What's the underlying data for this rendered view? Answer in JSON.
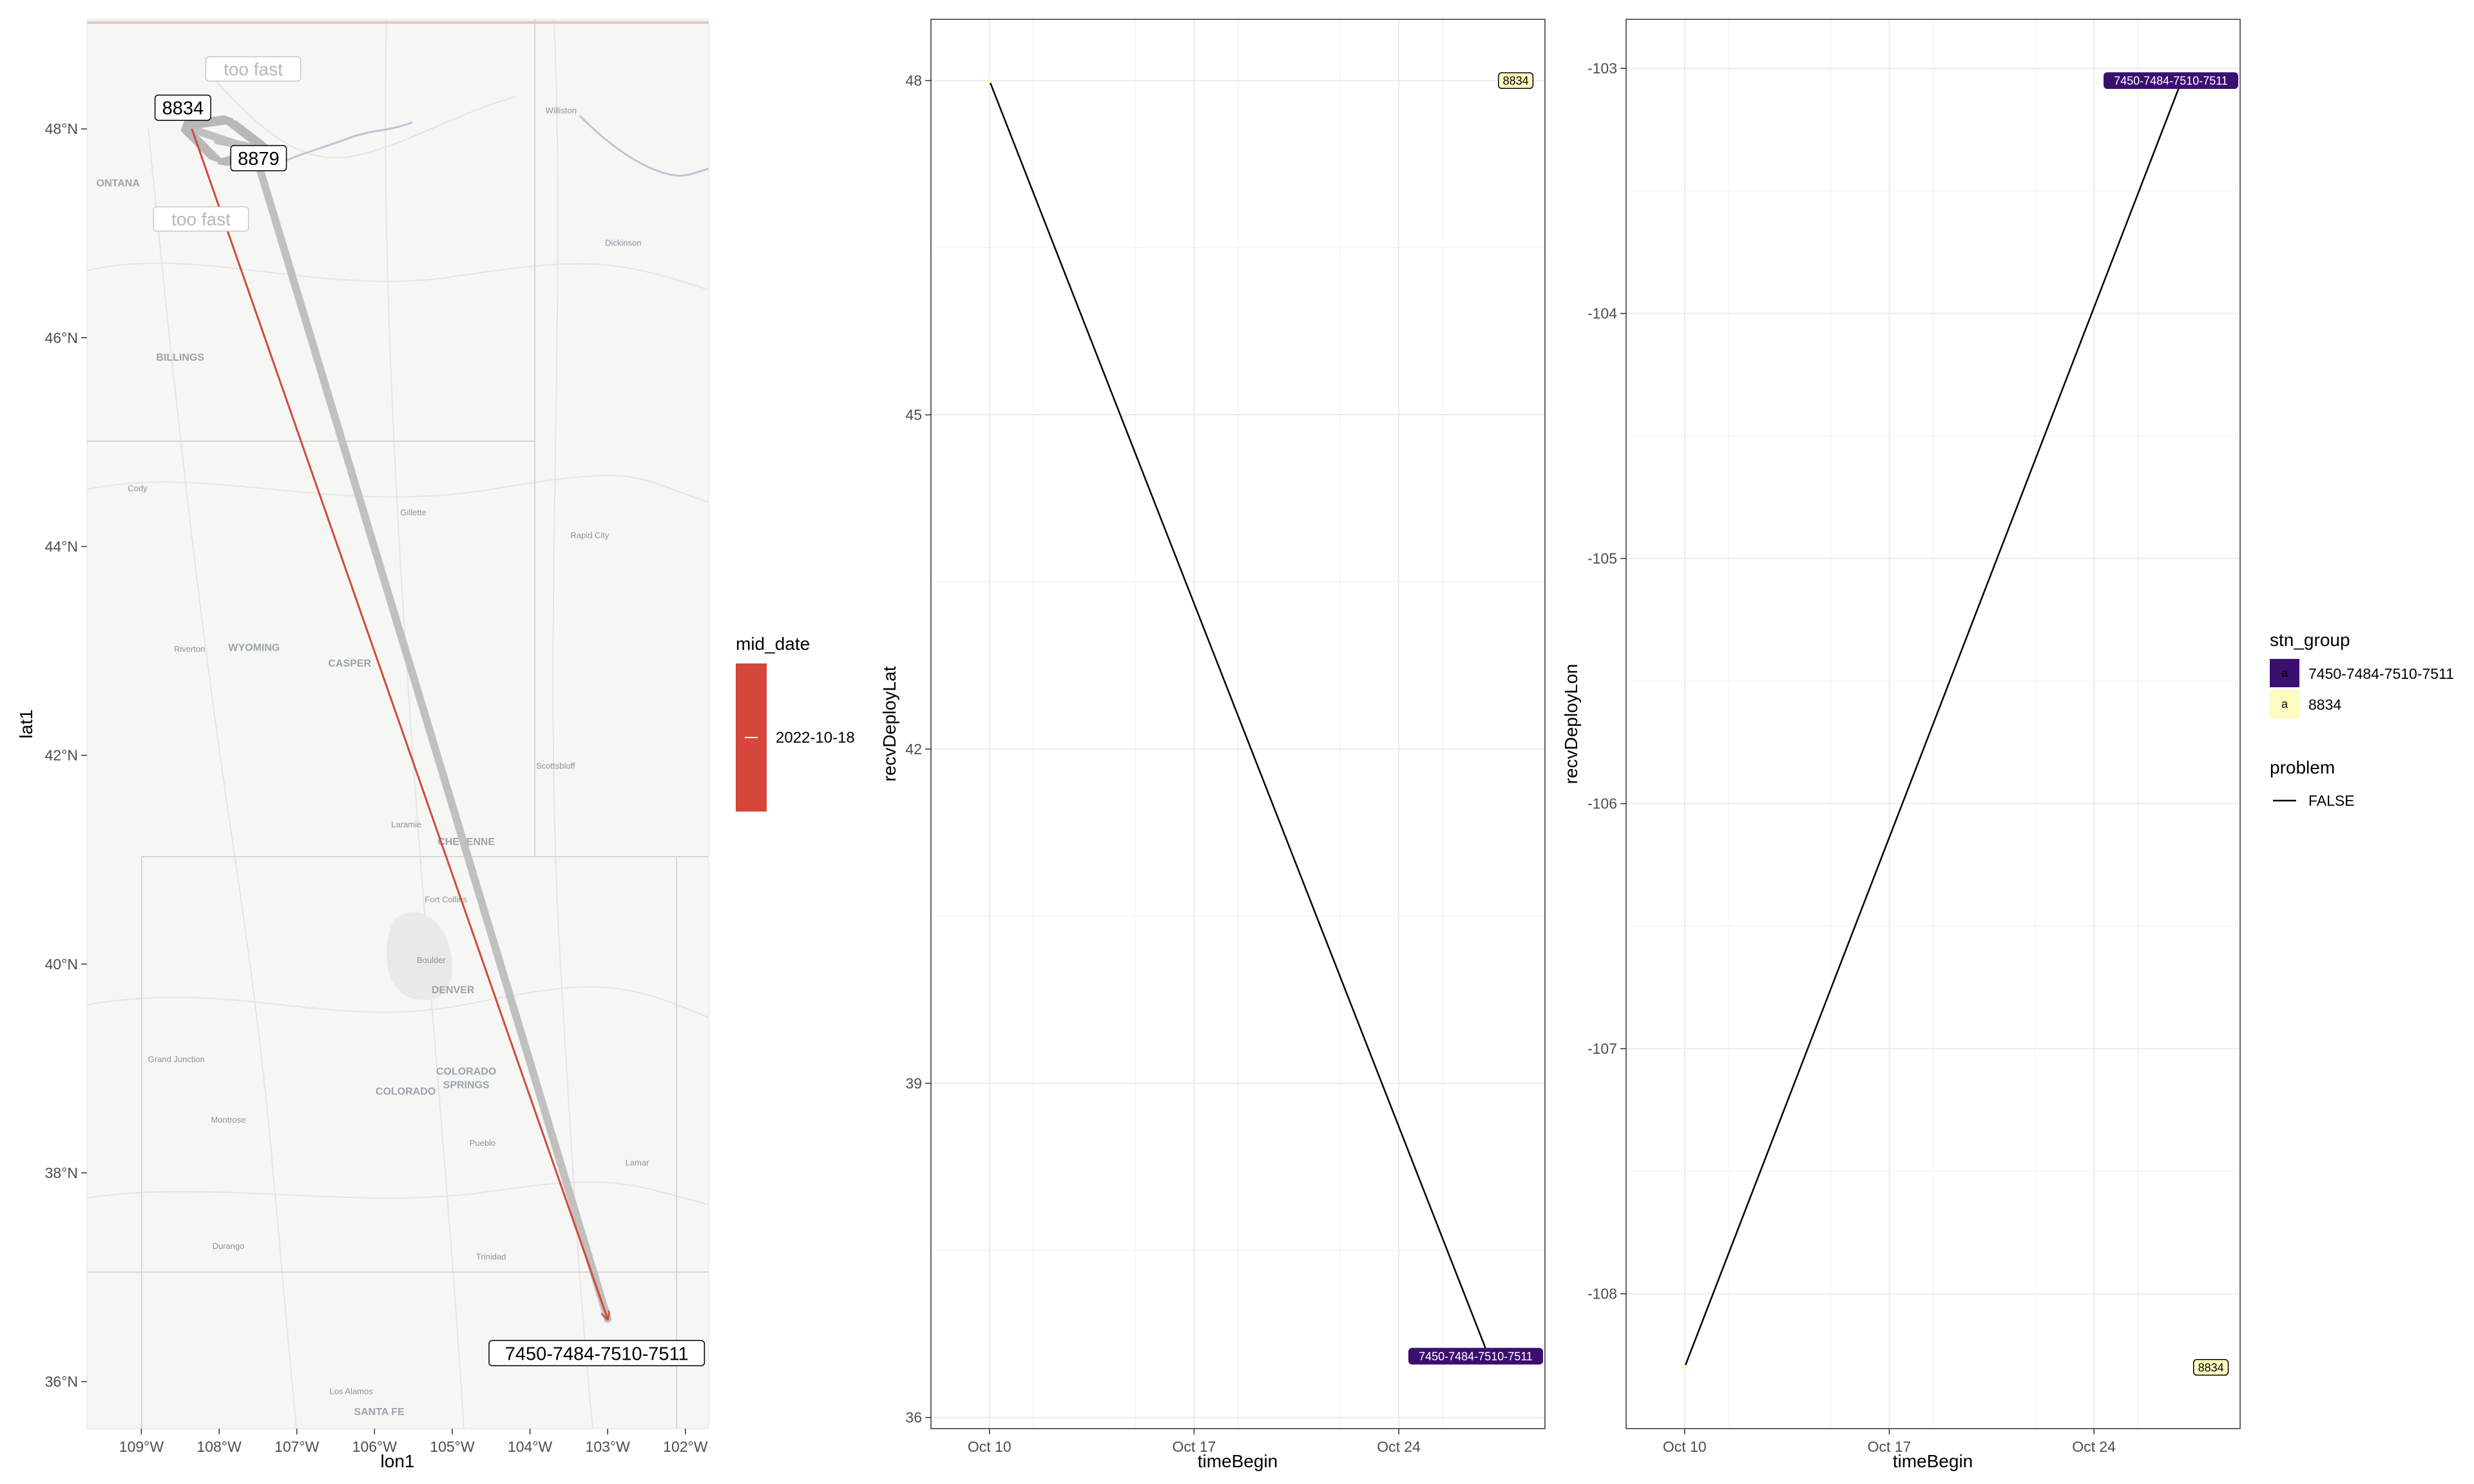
{
  "colors": {
    "route_arrow": "#c0c0c0",
    "route_line": "#d04a3a",
    "mid_date_fill": "#d5473b",
    "group_7450": "#3b0f70",
    "group_8834": "#fcfdbf",
    "trace_line": "#000000",
    "grid": "#ebebeb",
    "map_bg": "#f6f6f4"
  },
  "map_panel": {
    "xlabel": "lon1",
    "ylabel": "lat1",
    "x_ticks": [
      "109°W",
      "108°W",
      "107°W",
      "106°W",
      "105°W",
      "104°W",
      "103°W",
      "102°W"
    ],
    "y_ticks": [
      "36°N",
      "38°N",
      "40°N",
      "42°N",
      "44°N",
      "46°N",
      "48°N"
    ],
    "station_labels": {
      "s8834": "8834",
      "s8879": "8879",
      "s7450": "7450-7484-7510-7511"
    },
    "warnings": [
      "too fast",
      "too fast"
    ],
    "place_labels": [
      {
        "id": "williston",
        "text": "Williston",
        "lon": -103.6,
        "lat": 48.15
      },
      {
        "id": "dickinson",
        "text": "Dickinson",
        "lon": -102.8,
        "lat": 46.88
      },
      {
        "id": "billings",
        "text": "BILLINGS",
        "lon": -108.5,
        "lat": 45.78
      },
      {
        "id": "cody",
        "text": "Cody",
        "lon": -109.05,
        "lat": 44.53
      },
      {
        "id": "gillette",
        "text": "Gillette",
        "lon": -105.5,
        "lat": 44.3
      },
      {
        "id": "rapidcity",
        "text": "Rapid City",
        "lon": -103.23,
        "lat": 44.08
      },
      {
        "id": "wyoming",
        "text": "WYOMING",
        "lon": -107.55,
        "lat": 43.0
      },
      {
        "id": "riverton",
        "text": "Riverton",
        "lon": -108.38,
        "lat": 42.99
      },
      {
        "id": "casper",
        "text": "CASPER",
        "lon": -106.32,
        "lat": 42.85
      },
      {
        "id": "scottsbluff",
        "text": "Scottsbluff",
        "lon": -103.67,
        "lat": 41.87
      },
      {
        "id": "laramie",
        "text": "Laramie",
        "lon": -105.59,
        "lat": 41.31
      },
      {
        "id": "cheyenne",
        "text": "CHEYENNE",
        "lon": -104.82,
        "lat": 41.14
      },
      {
        "id": "fortcollins",
        "text": "Fort Collins",
        "lon": -105.08,
        "lat": 40.59
      },
      {
        "id": "boulder",
        "text": "Boulder",
        "lon": -105.27,
        "lat": 40.01
      },
      {
        "id": "denver",
        "text": "DENVER",
        "lon": -104.99,
        "lat": 39.72
      },
      {
        "id": "grandjunction",
        "text": "Grand Junction",
        "lon": -108.55,
        "lat": 39.06
      },
      {
        "id": "colorado",
        "text": "COLORADO",
        "lon": -105.6,
        "lat": 38.75
      },
      {
        "id": "cosprings1",
        "text": "COLORADO",
        "lon": -104.82,
        "lat": 38.94
      },
      {
        "id": "cosprings2",
        "text": "SPRINGS",
        "lon": -104.82,
        "lat": 38.81
      },
      {
        "id": "montrose",
        "text": "Montrose",
        "lon": -107.88,
        "lat": 38.48
      },
      {
        "id": "pueblo",
        "text": "Pueblo",
        "lon": -104.61,
        "lat": 38.26
      },
      {
        "id": "lamar",
        "text": "Lamar",
        "lon": -102.62,
        "lat": 38.07
      },
      {
        "id": "durango",
        "text": "Durango",
        "lon": -107.88,
        "lat": 37.27
      },
      {
        "id": "trinidad",
        "text": "Trinidad",
        "lon": -104.5,
        "lat": 37.17
      },
      {
        "id": "losalamos",
        "text": "Los Alamos",
        "lon": -106.3,
        "lat": 35.88
      },
      {
        "id": "santafe",
        "text": "SANTA FE",
        "lon": -105.94,
        "lat": 35.68
      },
      {
        "id": "montana",
        "text": "ONTANA",
        "lon": -109.3,
        "lat": 47.45
      }
    ]
  },
  "legend": {
    "mid_date_title": "mid_date",
    "mid_date_value": "2022-10-18",
    "stn_group_title": "stn_group",
    "stn_group_items": [
      {
        "label": "7450-7484-7510-7511",
        "key": "a"
      },
      {
        "label": "8834",
        "key": "a"
      }
    ],
    "problem_title": "problem",
    "problem_items": [
      {
        "label": "FALSE"
      }
    ]
  },
  "chart_data": [
    {
      "type": "scatter",
      "title": "",
      "xlabel": "lon1",
      "ylabel": "lat1",
      "xlim": [
        -109.7,
        -101.7
      ],
      "ylim": [
        35.55,
        49.05
      ],
      "stations": [
        {
          "name": "8834",
          "lon": -108.35,
          "lat": 48.0
        },
        {
          "name": "8879",
          "lon": -107.55,
          "lat": 47.8
        },
        {
          "name": "7450-7484-7510-7511",
          "lon": -103.0,
          "lat": 36.6
        }
      ],
      "segments": [
        {
          "from": "8879",
          "to": "8834",
          "label": "too fast"
        },
        {
          "from": "8879",
          "to": "7450-7484-7510-7511",
          "label": "too fast"
        },
        {
          "from": "8834",
          "to": "7450-7484-7510-7511",
          "mid_date": "2022-10-18"
        }
      ]
    },
    {
      "type": "line",
      "title": "",
      "xlabel": "timeBegin",
      "ylabel": "recvDeployLat",
      "x_ticks": [
        "Oct 10",
        "Oct 17",
        "Oct 24"
      ],
      "y_ticks": [
        36,
        39,
        42,
        45,
        48
      ],
      "ylim": [
        35.9,
        48.55
      ],
      "xlim": [
        "2022-10-08",
        "2022-10-29"
      ],
      "series": [
        {
          "name": "FALSE",
          "points": [
            {
              "x": "2022-10-10",
              "y": 48.0,
              "group": "8834"
            },
            {
              "x": "2022-10-27",
              "y": 36.6,
              "group": "7450-7484-7510-7511"
            }
          ]
        }
      ],
      "labels": [
        {
          "text": "8834",
          "x": "2022-10-28",
          "y": 48.0,
          "group": "8834"
        },
        {
          "text": "7450-7484-7510-7511",
          "x": "2022-10-27",
          "y": 36.55,
          "group": "7450-7484-7510-7511"
        }
      ]
    },
    {
      "type": "line",
      "title": "",
      "xlabel": "timeBegin",
      "ylabel": "recvDeployLon",
      "x_ticks": [
        "Oct 10",
        "Oct 17",
        "Oct 24"
      ],
      "y_ticks": [
        -108,
        -107,
        -106,
        -105,
        -104,
        -103
      ],
      "ylim": [
        -108.55,
        -102.8
      ],
      "xlim": [
        "2022-10-08",
        "2022-10-29"
      ],
      "series": [
        {
          "name": "FALSE",
          "points": [
            {
              "x": "2022-10-10",
              "y": -108.3,
              "group": "8834"
            },
            {
              "x": "2022-10-27",
              "y": -103.05,
              "group": "7450-7484-7510-7511"
            }
          ]
        }
      ],
      "labels": [
        {
          "text": "7450-7484-7510-7511",
          "x": "2022-10-27",
          "y": -103.05,
          "group": "7450-7484-7510-7511"
        },
        {
          "text": "8834",
          "x": "2022-10-28",
          "y": -108.3,
          "group": "8834"
        }
      ]
    }
  ]
}
